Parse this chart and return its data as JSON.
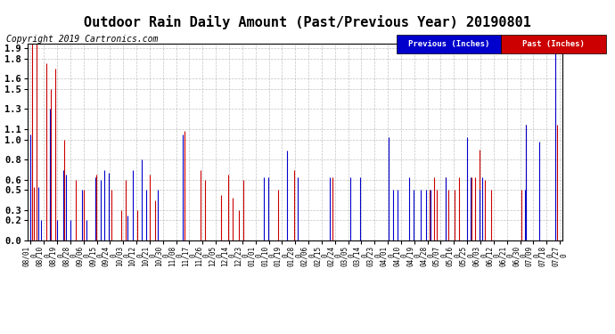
{
  "title": "Outdoor Rain Daily Amount (Past/Previous Year) 20190801",
  "copyright": "Copyright 2019 Cartronics.com",
  "legend_labels": [
    "Previous (Inches)",
    "Past (Inches)"
  ],
  "legend_colors": [
    "#0000cc",
    "#cc0000"
  ],
  "yticks": [
    0.0,
    0.2,
    0.3,
    0.5,
    0.6,
    0.8,
    1.0,
    1.1,
    1.3,
    1.5,
    1.6,
    1.8,
    1.9
  ],
  "ylim": [
    0.0,
    1.95
  ],
  "bg_color": "#ffffff",
  "grid_color": "#aaaaaa",
  "title_fontsize": 11,
  "copyright_fontsize": 7,
  "xtick_labels": [
    "08/01",
    "08/10",
    "08/19",
    "08/28",
    "09/06",
    "09/15",
    "09/24",
    "10/03",
    "10/12",
    "10/21",
    "10/30",
    "11/08",
    "11/17",
    "11/26",
    "12/05",
    "12/14",
    "12/23",
    "01/01",
    "01/10",
    "01/19",
    "01/28",
    "02/06",
    "02/15",
    "02/24",
    "03/05",
    "03/14",
    "03/23",
    "04/01",
    "04/10",
    "04/19",
    "04/28",
    "05/07",
    "05/16",
    "05/25",
    "06/03",
    "06/12",
    "06/21",
    "06/30",
    "07/09",
    "07/18",
    "07/27"
  ],
  "num_days": 362,
  "prev_rain": [
    1.05,
    0.0,
    0.0,
    0.0,
    0.0,
    0.53,
    0.0,
    0.2,
    0.0,
    0.0,
    0.0,
    0.0,
    0.0,
    1.3,
    0.0,
    0.0,
    0.0,
    0.0,
    0.2,
    0.0,
    0.0,
    0.0,
    0.7,
    0.0,
    0.65,
    0.0,
    0.0,
    0.2,
    0.0,
    0.0,
    0.0,
    0.0,
    0.0,
    0.0,
    0.0,
    0.5,
    0.0,
    0.0,
    0.2,
    0.0,
    0.0,
    0.0,
    0.0,
    0.0,
    0.63,
    0.0,
    0.0,
    0.0,
    0.6,
    0.0,
    0.7,
    0.0,
    0.0,
    0.67,
    0.0,
    0.0,
    0.0,
    0.0,
    0.0,
    0.0,
    0.0,
    0.0,
    0.0,
    0.0,
    0.0,
    0.0,
    0.25,
    0.0,
    0.0,
    0.0,
    0.7,
    0.0,
    0.0,
    0.0,
    0.0,
    0.0,
    0.8,
    0.0,
    0.0,
    0.5,
    0.0,
    0.0,
    0.0,
    0.0,
    0.0,
    0.0,
    0.0,
    0.5,
    0.0,
    0.0,
    0.0,
    0.0,
    0.0,
    0.0,
    0.0,
    0.0,
    0.0,
    0.0,
    0.0,
    0.0,
    0.0,
    0.0,
    0.0,
    0.0,
    1.05,
    0.0,
    0.0,
    0.0,
    0.0,
    0.0,
    0.0,
    0.0,
    0.0,
    0.0,
    0.0,
    0.0,
    0.0,
    0.0,
    0.0,
    0.0,
    0.0,
    0.0,
    0.0,
    0.0,
    0.0,
    0.0,
    0.0,
    0.0,
    0.0,
    0.0,
    0.0,
    0.0,
    0.0,
    0.0,
    0.0,
    0.0,
    0.0,
    0.0,
    0.0,
    0.0,
    0.0,
    0.0,
    0.0,
    0.0,
    0.0,
    0.0,
    0.0,
    0.0,
    0.0,
    0.0,
    0.0,
    0.0,
    0.0,
    0.0,
    0.0,
    0.0,
    0.0,
    0.0,
    0.0,
    0.63,
    0.0,
    0.0,
    0.63,
    0.0,
    0.0,
    0.0,
    0.0,
    0.0,
    0.0,
    0.0,
    0.0,
    0.0,
    0.0,
    0.0,
    0.0,
    0.89,
    0.0,
    0.0,
    0.0,
    0.0,
    0.0,
    0.0,
    0.63,
    0.0,
    0.0,
    0.0,
    0.0,
    0.0,
    0.0,
    0.0,
    0.0,
    0.0,
    0.0,
    0.0,
    0.0,
    0.0,
    0.0,
    0.0,
    0.0,
    0.0,
    0.0,
    0.0,
    0.0,
    0.0,
    0.63,
    0.0,
    0.0,
    0.0,
    0.0,
    0.0,
    0.0,
    0.0,
    0.0,
    0.0,
    0.0,
    0.0,
    0.0,
    0.0,
    0.63,
    0.0,
    0.0,
    0.0,
    0.0,
    0.0,
    0.0,
    0.63,
    0.0,
    0.0,
    0.0,
    0.0,
    0.0,
    0.0,
    0.0,
    0.0,
    0.0,
    0.0,
    0.0,
    0.0,
    0.0,
    0.0,
    0.0,
    0.0,
    0.0,
    0.0,
    1.02,
    0.0,
    0.0,
    0.5,
    0.0,
    0.0,
    0.5,
    0.0,
    0.0,
    0.0,
    0.0,
    0.0,
    0.0,
    0.0,
    0.63,
    0.0,
    0.0,
    0.5,
    0.0,
    0.0,
    0.0,
    0.0,
    0.5,
    0.0,
    0.0,
    0.0,
    0.5,
    0.0,
    0.0,
    0.5,
    0.0,
    0.0,
    0.0,
    0.0,
    0.0,
    0.0,
    0.0,
    0.0,
    0.0,
    0.63,
    0.0,
    0.0,
    0.0,
    0.0,
    0.0,
    0.0,
    0.0,
    0.0,
    0.0,
    0.0,
    0.0,
    0.0,
    0.0,
    0.0,
    1.02,
    0.0,
    0.63,
    0.0,
    0.0,
    0.0,
    0.0,
    0.0,
    0.5,
    0.0,
    0.63,
    0.0,
    0.0,
    0.0,
    0.0,
    0.0,
    0.0,
    0.0,
    0.0,
    0.0,
    0.0,
    0.0,
    0.0,
    0.0,
    0.0,
    0.0,
    0.0,
    0.0,
    0.0,
    0.0,
    0.0,
    0.0,
    0.0,
    0.0,
    0.0,
    0.0,
    0.0,
    0.0,
    0.0,
    0.5,
    1.15,
    0.0,
    0.0,
    0.0,
    0.0,
    0.0,
    0.0,
    0.0,
    0.0,
    0.98,
    0.0,
    0.0,
    0.0,
    0.0,
    0.0,
    0.0,
    0.0,
    0.0,
    0.0,
    0.0,
    1.9,
    0.0,
    0.0,
    0.0
  ],
  "past_rain": [
    0.0,
    1.95,
    0.53,
    0.0,
    1.95,
    0.0,
    0.0,
    0.0,
    0.0,
    0.0,
    0.0,
    1.75,
    0.0,
    0.0,
    1.5,
    0.0,
    0.0,
    1.7,
    0.0,
    0.0,
    0.0,
    0.0,
    0.0,
    1.0,
    0.0,
    0.0,
    0.0,
    0.0,
    0.0,
    0.0,
    0.0,
    0.6,
    0.0,
    0.0,
    0.0,
    0.0,
    0.5,
    0.0,
    0.0,
    0.0,
    0.0,
    0.0,
    0.0,
    0.0,
    0.0,
    0.65,
    0.0,
    0.0,
    0.0,
    0.0,
    0.0,
    0.0,
    0.0,
    0.0,
    0.0,
    0.5,
    0.0,
    0.0,
    0.0,
    0.0,
    0.0,
    0.0,
    0.3,
    0.0,
    0.0,
    0.6,
    0.0,
    0.0,
    0.0,
    0.0,
    0.0,
    0.0,
    0.0,
    0.3,
    0.0,
    0.0,
    0.0,
    0.0,
    0.0,
    0.0,
    0.0,
    0.65,
    0.0,
    0.0,
    0.0,
    0.4,
    0.0,
    0.0,
    0.0,
    0.0,
    0.0,
    0.0,
    0.0,
    0.0,
    0.0,
    0.0,
    0.0,
    0.0,
    0.0,
    0.0,
    0.0,
    0.0,
    0.0,
    0.0,
    0.0,
    1.08,
    0.0,
    0.0,
    0.0,
    0.0,
    0.0,
    0.0,
    0.0,
    0.0,
    0.0,
    0.0,
    0.7,
    0.0,
    0.0,
    0.6,
    0.0,
    0.0,
    0.0,
    0.0,
    0.0,
    0.0,
    0.0,
    0.0,
    0.0,
    0.0,
    0.45,
    0.0,
    0.0,
    0.0,
    0.0,
    0.65,
    0.0,
    0.0,
    0.42,
    0.0,
    0.0,
    0.0,
    0.3,
    0.0,
    0.0,
    0.6,
    0.0,
    0.0,
    0.0,
    0.0,
    0.0,
    0.0,
    0.0,
    0.0,
    0.0,
    0.0,
    0.0,
    0.0,
    0.0,
    0.0,
    0.0,
    0.0,
    0.0,
    0.0,
    0.0,
    0.0,
    0.0,
    0.0,
    0.0,
    0.5,
    0.0,
    0.0,
    0.0,
    0.0,
    0.0,
    0.0,
    0.0,
    0.0,
    0.0,
    0.0,
    0.7,
    0.0,
    0.0,
    0.0,
    0.0,
    0.0,
    0.0,
    0.0,
    0.0,
    0.0,
    0.0,
    0.0,
    0.0,
    0.0,
    0.0,
    0.0,
    0.0,
    0.0,
    0.0,
    0.0,
    0.0,
    0.0,
    0.0,
    0.0,
    0.0,
    0.0,
    0.63,
    0.0,
    0.0,
    0.0,
    0.0,
    0.0,
    0.0,
    0.0,
    0.0,
    0.0,
    0.0,
    0.0,
    0.0,
    0.0,
    0.0,
    0.0,
    0.0,
    0.0,
    0.0,
    0.0,
    0.0,
    0.0,
    0.0,
    0.0,
    0.0,
    0.0,
    0.0,
    0.0,
    0.0,
    0.0,
    0.0,
    0.0,
    0.0,
    0.0,
    0.0,
    0.0,
    0.0,
    0.0,
    0.0,
    0.0,
    0.0,
    0.0,
    0.0,
    0.0,
    0.0,
    0.0,
    0.0,
    0.0,
    0.0,
    0.0,
    0.0,
    0.0,
    0.0,
    0.0,
    0.0,
    0.0,
    0.0,
    0.0,
    0.0,
    0.0,
    0.0,
    0.0,
    0.0,
    0.0,
    0.0,
    0.0,
    0.5,
    0.0,
    0.0,
    0.63,
    0.0,
    0.5,
    0.0,
    0.0,
    0.0,
    0.0,
    0.0,
    0.63,
    0.0,
    0.5,
    0.0,
    0.0,
    0.0,
    0.5,
    0.0,
    0.0,
    0.63,
    0.0,
    0.0,
    0.0,
    0.0,
    0.0,
    0.0,
    0.0,
    0.0,
    0.63,
    0.0,
    0.63,
    0.0,
    0.0,
    0.9,
    0.0,
    0.0,
    0.0,
    0.6,
    0.0,
    0.0,
    0.0,
    0.5,
    0.0,
    0.0,
    0.0,
    0.0,
    0.0,
    0.0,
    0.0,
    0.0,
    0.0,
    0.0,
    0.0,
    0.0,
    0.0,
    0.0,
    0.0,
    0.0,
    0.0,
    0.0,
    0.0,
    0.0,
    0.5,
    0.0,
    0.0,
    1.15,
    0.0,
    0.0,
    0.0,
    0.0,
    0.0,
    0.0,
    0.0,
    0.0,
    0.0,
    0.0,
    0.0,
    0.0,
    0.0,
    0.0,
    0.0,
    0.0,
    0.0,
    0.0,
    0.0,
    0.0,
    1.15,
    0.0,
    0.0
  ]
}
